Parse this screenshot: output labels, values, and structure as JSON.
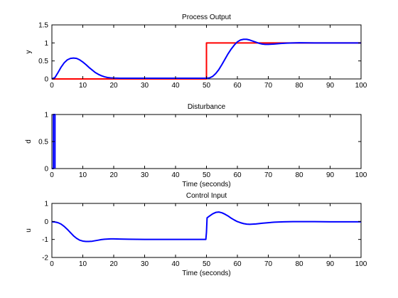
{
  "chart_data": [
    {
      "type": "line",
      "title": "Process Output",
      "xlabel": "",
      "ylabel": "y",
      "xlim": [
        0,
        100
      ],
      "ylim": [
        0,
        1.5
      ],
      "xticks": [
        0,
        10,
        20,
        30,
        40,
        50,
        60,
        70,
        80,
        90,
        100
      ],
      "yticks": [
        0,
        0.5,
        1,
        1.5
      ],
      "ytick_labels": [
        "0",
        "0.5",
        "1",
        "1.5"
      ],
      "series": [
        {
          "color": "#ff0000",
          "x": [
            0,
            50,
            50,
            100
          ],
          "y": [
            0,
            0,
            1,
            1
          ]
        },
        {
          "color": "#0000ff",
          "x": [
            0,
            1,
            2,
            3,
            4,
            5,
            6,
            7,
            8,
            9,
            10,
            11,
            12,
            13,
            14,
            15,
            16,
            17,
            18,
            19,
            20,
            22,
            25,
            30,
            35,
            40,
            45,
            50,
            51,
            52,
            53,
            54,
            55,
            56,
            57,
            58,
            59,
            60,
            61,
            62,
            63,
            64,
            65,
            66,
            67,
            68,
            69,
            70,
            71,
            72,
            74,
            76,
            78,
            80,
            85,
            90,
            95,
            100
          ],
          "y": [
            0,
            0.04,
            0.18,
            0.33,
            0.45,
            0.53,
            0.57,
            0.58,
            0.57,
            0.53,
            0.47,
            0.4,
            0.32,
            0.25,
            0.18,
            0.13,
            0.09,
            0.06,
            0.04,
            0.03,
            0.025,
            0.02,
            0.02,
            0.02,
            0.02,
            0.02,
            0.02,
            0.02,
            0.03,
            0.07,
            0.15,
            0.26,
            0.4,
            0.55,
            0.7,
            0.83,
            0.94,
            1.03,
            1.08,
            1.1,
            1.1,
            1.08,
            1.05,
            1.02,
            0.99,
            0.97,
            0.96,
            0.96,
            0.965,
            0.97,
            0.985,
            0.995,
            1.0,
            1.005,
            1.0,
            1.0,
            1.0,
            1.0
          ]
        }
      ]
    },
    {
      "type": "line",
      "title": "Disturbance",
      "xlabel": "Time (seconds)",
      "ylabel": "d",
      "xlim": [
        0,
        100
      ],
      "ylim": [
        0,
        1
      ],
      "xticks": [
        0,
        10,
        20,
        30,
        40,
        50,
        60,
        70,
        80,
        90,
        100
      ],
      "yticks": [
        0,
        0.5,
        1
      ],
      "ytick_labels": [
        "0",
        "0.5",
        "1"
      ],
      "series": [
        {
          "color": "#0000ff",
          "x": [
            0,
            0.5,
            0.5,
            1,
            1
          ],
          "y": [
            0,
            0,
            1,
            1,
            0
          ]
        }
      ]
    },
    {
      "type": "line",
      "title": "Control Input",
      "xlabel": "Time (seconds)",
      "ylabel": "u",
      "xlim": [
        0,
        100
      ],
      "ylim": [
        -2,
        1
      ],
      "xticks": [
        0,
        10,
        20,
        30,
        40,
        50,
        60,
        70,
        80,
        90,
        100
      ],
      "yticks": [
        -2,
        -1,
        0,
        1
      ],
      "ytick_labels": [
        "-2",
        "-1",
        "0",
        "1"
      ],
      "series": [
        {
          "color": "#0000ff",
          "x": [
            0,
            1,
            2,
            3,
            4,
            5,
            6,
            7,
            8,
            9,
            10,
            11,
            12,
            13,
            14,
            15,
            16,
            17,
            18,
            19,
            20,
            22,
            25,
            30,
            35,
            40,
            45,
            49.8,
            50,
            50.2,
            51,
            52,
            53,
            54,
            55,
            56,
            57,
            58,
            59,
            60,
            61,
            62,
            63,
            64,
            65,
            66,
            67,
            68,
            70,
            72,
            75,
            78,
            80,
            85,
            90,
            95,
            100
          ],
          "y": [
            -0.02,
            -0.03,
            -0.07,
            -0.15,
            -0.28,
            -0.44,
            -0.62,
            -0.8,
            -0.94,
            -1.04,
            -1.09,
            -1.11,
            -1.11,
            -1.1,
            -1.07,
            -1.04,
            -1.01,
            -0.99,
            -0.98,
            -0.97,
            -0.97,
            -0.98,
            -0.99,
            -1.0,
            -1.0,
            -1.0,
            -1.0,
            -1.0,
            -0.6,
            0.2,
            0.3,
            0.42,
            0.5,
            0.52,
            0.48,
            0.4,
            0.3,
            0.18,
            0.08,
            -0.01,
            -0.07,
            -0.12,
            -0.15,
            -0.16,
            -0.15,
            -0.14,
            -0.12,
            -0.1,
            -0.07,
            -0.04,
            -0.02,
            -0.01,
            -0.01,
            -0.01,
            -0.02,
            -0.02,
            -0.02
          ]
        }
      ]
    }
  ]
}
